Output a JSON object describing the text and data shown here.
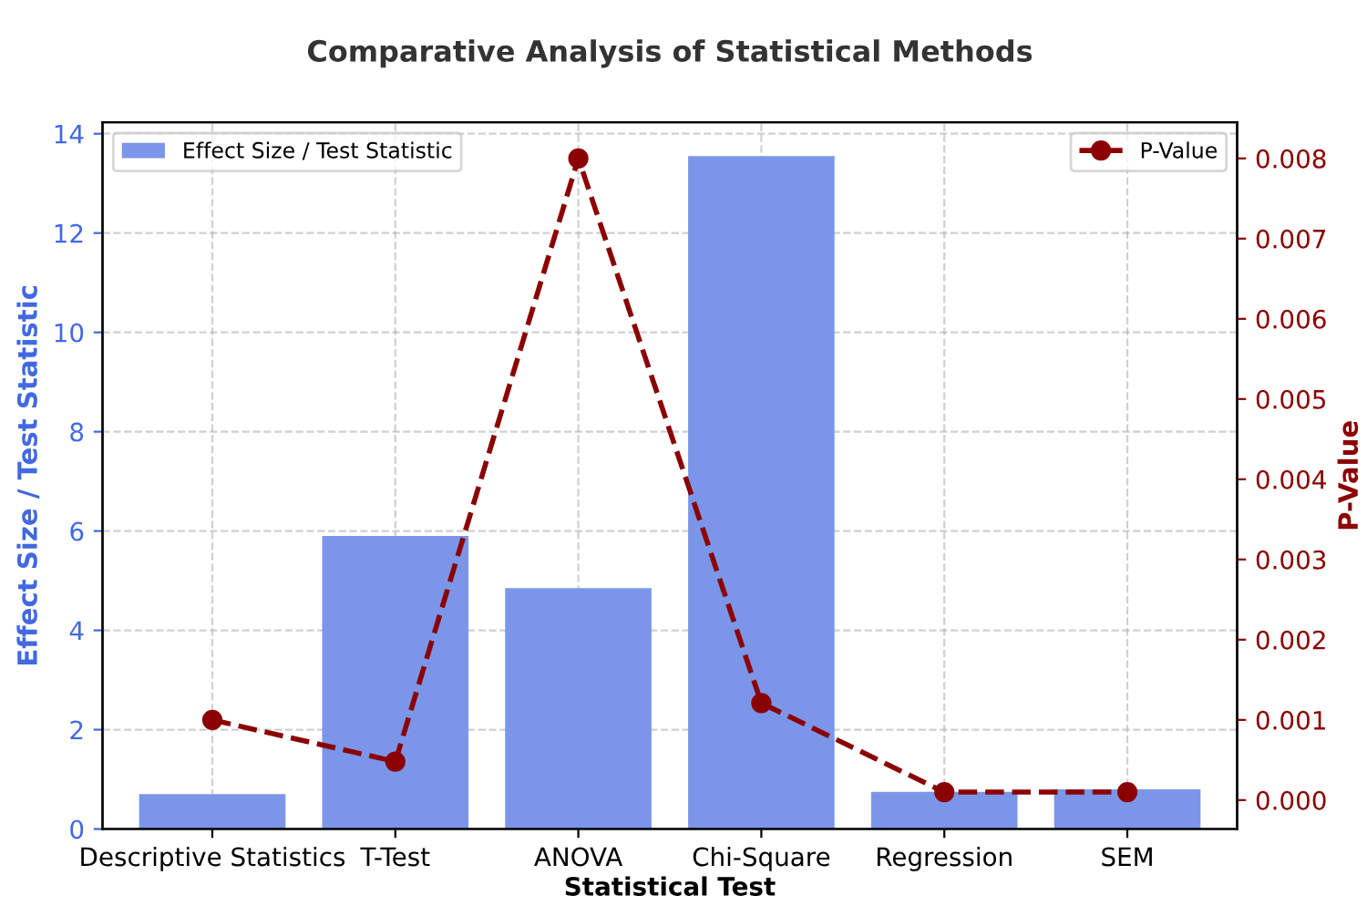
{
  "chart_data": {
    "type": "bar",
    "title": "Comparative Analysis of Statistical Methods",
    "xlabel": "Statistical Test",
    "ylabel": "Effect Size / Test Statistic",
    "y2label": "P-Value",
    "categories": [
      "Descriptive Statistics",
      "T-Test",
      "ANOVA",
      "Chi-Square",
      "Regression",
      "SEM"
    ],
    "series": [
      {
        "name": "Effect Size / Test Statistic",
        "color": "#7b96e8",
        "values": [
          0.7,
          5.9,
          4.85,
          13.55,
          0.75,
          0.8
        ]
      },
      {
        "name": "P-Value",
        "type": "line",
        "axis": "y2",
        "color": "#8b0000",
        "marker": "circle",
        "line_style": "dashed",
        "values": [
          0.001,
          0.00048,
          0.008,
          0.00121,
          0.0001,
          0.0001
        ]
      }
    ],
    "ylim": [
      0,
      14.23
    ],
    "yticks": [
      0,
      2,
      4,
      6,
      8,
      10,
      12,
      14
    ],
    "y2lim": [
      -0.00036,
      0.00845
    ],
    "y2ticks": [
      {
        "value": 0,
        "label": "0.000"
      },
      {
        "value": 0.001,
        "label": "0.001"
      },
      {
        "value": 0.002,
        "label": "0.002"
      },
      {
        "value": 0.003,
        "label": "0.003"
      },
      {
        "value": 0.004,
        "label": "0.004"
      },
      {
        "value": 0.005,
        "label": "0.005"
      },
      {
        "value": 0.006,
        "label": "0.006"
      },
      {
        "value": 0.007,
        "label": "0.007"
      },
      {
        "value": 0.008,
        "label": "0.008"
      }
    ],
    "grid": true,
    "legend": "top"
  }
}
